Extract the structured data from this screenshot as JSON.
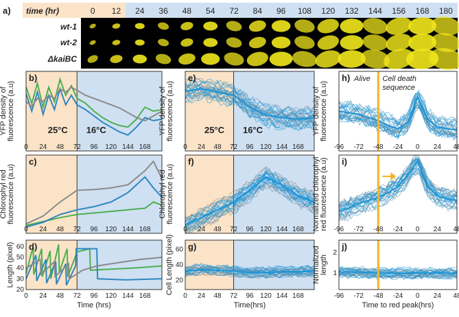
{
  "colors": {
    "warm_bg": "#fbe3c8",
    "cool_bg": "#cfe0f2",
    "wt1": "#4caf50",
    "wt2": "#2e86c1",
    "kaibc": "#8a8a8a",
    "sim_cloud": "#1f95d6",
    "marker": "#f5b324",
    "green_text": "#3a9a2a",
    "blue_text": "#2e6fb0"
  },
  "panel_a": {
    "label": "a)",
    "time_header": "time (hr)",
    "times": [
      "0",
      "12",
      "24",
      "36",
      "48",
      "54",
      "72",
      "84",
      "96",
      "108",
      "120",
      "132",
      "144",
      "156",
      "168",
      "180"
    ],
    "strains": [
      "wt-1",
      "wt-2",
      "ΔkaiBC"
    ]
  },
  "chart_data": [
    {
      "id": "b",
      "type": "line",
      "label": "b)",
      "ylabel": [
        "YFP density of",
        "fluorescence (a.u)"
      ],
      "xlim": [
        0,
        192
      ],
      "ylim": [
        0,
        1
      ],
      "shift_at": 72,
      "annotations": [
        "25°C",
        "16°C"
      ],
      "series": [
        {
          "name": "wt-1",
          "x": [
            0,
            8,
            16,
            24,
            32,
            40,
            48,
            56,
            64,
            72,
            84,
            96,
            108,
            120,
            132,
            144,
            156,
            168,
            180,
            192
          ],
          "values": [
            0.8,
            0.6,
            0.85,
            0.55,
            0.8,
            0.62,
            0.9,
            0.7,
            0.82,
            0.66,
            0.6,
            0.5,
            0.42,
            0.36,
            0.32,
            0.3,
            0.4,
            0.55,
            0.5,
            0.52
          ]
        },
        {
          "name": "wt-2",
          "x": [
            0,
            8,
            16,
            24,
            32,
            40,
            48,
            56,
            64,
            72,
            84,
            96,
            108,
            120,
            132,
            144,
            156,
            168,
            180,
            192
          ],
          "values": [
            0.72,
            0.5,
            0.74,
            0.46,
            0.7,
            0.52,
            0.78,
            0.58,
            0.7,
            0.58,
            0.52,
            0.44,
            0.36,
            0.3,
            0.24,
            0.2,
            0.3,
            0.42,
            0.38,
            0.4
          ]
        },
        {
          "name": "ΔkaiBC",
          "x": [
            0,
            8,
            16,
            24,
            32,
            40,
            48,
            56,
            64,
            72,
            84,
            96,
            108,
            120,
            132,
            144,
            156,
            168,
            180,
            192
          ],
          "values": [
            0.62,
            0.56,
            0.66,
            0.62,
            0.7,
            0.66,
            0.78,
            0.74,
            0.8,
            0.76,
            0.7,
            0.66,
            0.62,
            0.58,
            0.54,
            0.48,
            0.42,
            0.38,
            0.44,
            0.5
          ]
        }
      ]
    },
    {
      "id": "c",
      "type": "line",
      "label": "c)",
      "ylabel": [
        "Chlorophyl red",
        "fluorescence (a.u)"
      ],
      "xlim": [
        0,
        192
      ],
      "ylim": [
        0,
        1
      ],
      "shift_at": 72,
      "series": [
        {
          "name": "wt-1",
          "x": [
            0,
            24,
            48,
            72,
            96,
            120,
            144,
            168,
            180,
            192
          ],
          "values": [
            0.1,
            0.15,
            0.2,
            0.24,
            0.26,
            0.28,
            0.3,
            0.32,
            0.4,
            0.36
          ]
        },
        {
          "name": "wt-2",
          "x": [
            0,
            24,
            48,
            72,
            96,
            120,
            144,
            168,
            180,
            192
          ],
          "values": [
            0.08,
            0.14,
            0.24,
            0.3,
            0.34,
            0.4,
            0.52,
            0.72,
            0.58,
            0.46
          ]
        },
        {
          "name": "ΔkaiBC",
          "x": [
            0,
            24,
            48,
            72,
            96,
            120,
            144,
            168,
            180,
            192
          ],
          "values": [
            0.12,
            0.22,
            0.4,
            0.55,
            0.56,
            0.58,
            0.62,
            0.8,
            0.92,
            0.7
          ]
        }
      ]
    },
    {
      "id": "d",
      "type": "line",
      "label": "d)",
      "ylabel": [
        "Length (pixel)"
      ],
      "xlabel": "Time (hrs)",
      "xticks": [
        0,
        24,
        48,
        72,
        96,
        120,
        144,
        168
      ],
      "yticks": [
        20,
        30,
        40,
        50,
        60
      ],
      "xlim": [
        0,
        192
      ],
      "ylim": [
        20,
        66
      ],
      "shift_at": 72,
      "series": [
        {
          "name": "wt-1",
          "x": [
            0,
            10,
            11,
            22,
            23,
            34,
            35,
            46,
            47,
            58,
            59,
            72,
            90,
            91,
            120,
            150,
            192
          ],
          "values": [
            35,
            60,
            34,
            58,
            32,
            56,
            30,
            62,
            36,
            58,
            32,
            55,
            58,
            38,
            39,
            40,
            42
          ]
        },
        {
          "name": "wt-2",
          "x": [
            0,
            14,
            15,
            28,
            29,
            42,
            43,
            56,
            57,
            70,
            71,
            100,
            101,
            140,
            192
          ],
          "values": [
            30,
            52,
            28,
            48,
            26,
            46,
            25,
            44,
            24,
            42,
            58,
            58,
            30,
            29,
            30
          ]
        },
        {
          "name": "ΔkaiBC",
          "x": [
            0,
            20,
            21,
            40,
            41,
            60,
            61,
            80,
            100,
            130,
            160,
            192
          ],
          "values": [
            40,
            48,
            34,
            46,
            32,
            44,
            30,
            38,
            42,
            45,
            48,
            50
          ]
        }
      ]
    },
    {
      "id": "e",
      "type": "line",
      "label": "e)",
      "ylabel": [
        "YFP density of",
        "fluorescence (a.u)"
      ],
      "xlim": [
        0,
        192
      ],
      "ylim": [
        0,
        1
      ],
      "shift_at": 72,
      "annotations": [
        "25°C",
        "16°C"
      ],
      "series": [
        {
          "name": "mean",
          "x": [
            0,
            24,
            48,
            72,
            96,
            120,
            144,
            168,
            192
          ],
          "values": [
            0.75,
            0.78,
            0.74,
            0.7,
            0.55,
            0.45,
            0.42,
            0.4,
            0.42
          ]
        }
      ]
    },
    {
      "id": "f",
      "type": "line",
      "label": "f)",
      "ylabel": [
        "Chlorophyl red",
        "fluorescence (a.u)"
      ],
      "xlim": [
        0,
        192
      ],
      "ylim": [
        0,
        1
      ],
      "shift_at": 72,
      "series": [
        {
          "name": "mean",
          "x": [
            0,
            24,
            48,
            72,
            96,
            120,
            144,
            168,
            192
          ],
          "values": [
            0.1,
            0.2,
            0.3,
            0.4,
            0.55,
            0.72,
            0.62,
            0.48,
            0.4
          ]
        }
      ]
    },
    {
      "id": "g",
      "type": "line",
      "label": "g)",
      "ylabel": [
        "Cell Length (pixel)"
      ],
      "xlabel": "Time(hrs)",
      "xticks": [
        0,
        24,
        48,
        72,
        96,
        120,
        144,
        168
      ],
      "yticks": [
        20,
        40,
        60
      ],
      "xlim": [
        0,
        192
      ],
      "ylim": [
        8,
        72
      ],
      "shift_at": 72,
      "series": [
        {
          "name": "mean",
          "x": [
            0,
            24,
            48,
            72,
            96,
            120,
            144,
            168,
            192
          ],
          "values": [
            32,
            34,
            33,
            32,
            30,
            30,
            31,
            31,
            32
          ]
        }
      ]
    },
    {
      "id": "h",
      "type": "line",
      "label": "h)",
      "ylabel": [
        "YFP density of",
        "fluorescence (a.u)"
      ],
      "xlim": [
        -96,
        48
      ],
      "ylim": [
        0,
        1
      ],
      "marker_at": -48,
      "annotations": [
        "Alive",
        "Cell death",
        "sequence"
      ],
      "series": [
        {
          "name": "mean",
          "x": [
            -96,
            -84,
            -72,
            -60,
            -48,
            -36,
            -24,
            -12,
            0,
            12,
            24,
            36,
            48
          ],
          "values": [
            0.5,
            0.48,
            0.46,
            0.42,
            0.38,
            0.32,
            0.28,
            0.36,
            0.68,
            0.4,
            0.3,
            0.28,
            0.26
          ]
        }
      ]
    },
    {
      "id": "i",
      "type": "line",
      "label": "i)",
      "ylabel": [
        "Normalized chlorophyl",
        "red fluorescence (a.u)"
      ],
      "xlim": [
        -96,
        48
      ],
      "ylim": [
        0,
        1
      ],
      "marker_at": -48,
      "series": [
        {
          "name": "mean",
          "x": [
            -96,
            -84,
            -72,
            -60,
            -48,
            -36,
            -24,
            -12,
            0,
            12,
            24,
            36,
            48
          ],
          "values": [
            0.28,
            0.32,
            0.38,
            0.42,
            0.46,
            0.52,
            0.6,
            0.74,
            0.92,
            0.6,
            0.48,
            0.44,
            0.42
          ]
        }
      ]
    },
    {
      "id": "j",
      "type": "line",
      "label": "j)",
      "ylabel": [
        "Normalized",
        "length"
      ],
      "xlabel": "Time to red peak(hrs)",
      "xticks": [
        -96,
        -72,
        -48,
        -24,
        0,
        24,
        48
      ],
      "yticks": [
        1,
        2
      ],
      "xlim": [
        -96,
        48
      ],
      "ylim": [
        0.2,
        2.6
      ],
      "marker_at": -48,
      "series": [
        {
          "name": "mean",
          "x": [
            -96,
            -72,
            -48,
            -24,
            0,
            24,
            48
          ],
          "values": [
            1.05,
            1.05,
            1.0,
            1.0,
            1.0,
            1.0,
            1.0
          ]
        }
      ]
    }
  ]
}
